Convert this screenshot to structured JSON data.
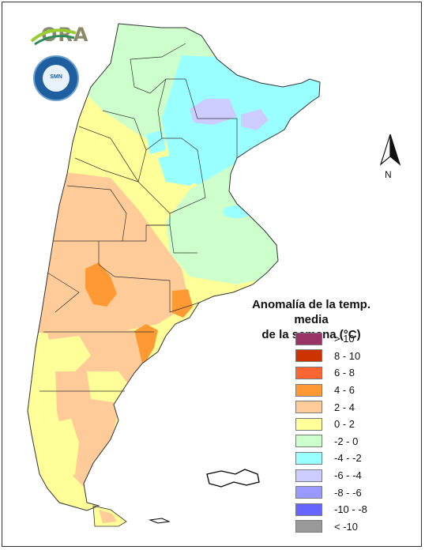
{
  "logo": {
    "text": "ORA"
  },
  "seal": {
    "text": "SMN"
  },
  "compass": {
    "label": "N"
  },
  "legend": {
    "title_line1": "Anomalía de la temp. media",
    "title_line2": "de la semana (°C)",
    "items": [
      {
        "label": "> 10",
        "color": "#993366"
      },
      {
        "label": "8 - 10",
        "color": "#cc3300"
      },
      {
        "label": "6 - 8",
        "color": "#ff6633"
      },
      {
        "label": "4 - 6",
        "color": "#ff9933"
      },
      {
        "label": "2 - 4",
        "color": "#ffcc99"
      },
      {
        "label": "0 - 2",
        "color": "#ffff99"
      },
      {
        "label": "-2 - 0",
        "color": "#ccffcc"
      },
      {
        "label": "-4 - -2",
        "color": "#99ffff"
      },
      {
        "label": "-6 - -4",
        "color": "#ccccff"
      },
      {
        "label": "-8 - -6",
        "color": "#9999ff"
      },
      {
        "label": "-10 - -8",
        "color": "#6666ff"
      },
      {
        "label": "< -10",
        "color": "#999999"
      }
    ]
  }
}
